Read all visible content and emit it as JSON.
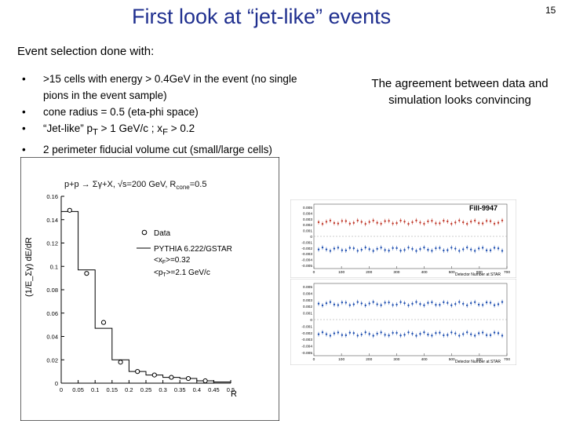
{
  "slide": {
    "title": "First look at “jet-like” events",
    "page_number": "15",
    "subtitle": "Event selection done with:",
    "bullets": [
      {
        "line1": ">15 cells with energy > 0.4GeV in the event (no single",
        "line2": "pions in the event sample)"
      },
      {
        "line1": "cone radius = 0.5 (eta-phi space)"
      },
      {
        "line1": "“Jet-like” p",
        "sub1": "T",
        "mid": " > 1 GeV/c ; x",
        "sub2": "F",
        "end": " > 0.2"
      },
      {
        "line1": "2 perimeter fiducial volume cut (small/large cells)"
      }
    ],
    "note": "The agreement between data and simulation looks convincing"
  },
  "chart_data": [
    {
      "type": "scatter",
      "title": "p+p → Σγ+X, √s=200 GeV, R",
      "title_sub": "cone",
      "title_end": "=0.5",
      "xlabel": "R",
      "ylabel": "(1/E_Σγ) dE/dR",
      "xlim": [
        0,
        0.5
      ],
      "ylim": [
        0,
        0.16
      ],
      "x_ticks": [
        "0",
        "0.05",
        "0.1",
        "0.15",
        "0.2",
        "0.25",
        "0.3",
        "0.35",
        "0.4",
        "0.45",
        "0.5"
      ],
      "y_ticks": [
        "0",
        "0.02",
        "0.04",
        "0.06",
        "0.08",
        "0.1",
        "0.12",
        "0.14",
        "0.16"
      ],
      "legend": {
        "data_label": "Data",
        "sim_label": "PYTHIA 6.222/GSTAR",
        "xf_label": "<x",
        "xf_sub": "F",
        "xf_val": ">=0.32",
        "pt_label": "<p",
        "pt_sub": "T",
        "pt_val": ">=2.1 GeV/c"
      },
      "series": [
        {
          "name": "Data",
          "x": [
            0.025,
            0.075,
            0.125,
            0.175,
            0.225,
            0.275,
            0.325,
            0.375,
            0.425
          ],
          "y": [
            0.148,
            0.094,
            0.052,
            0.018,
            0.01,
            0.007,
            0.005,
            0.004,
            0.002
          ]
        },
        {
          "name": "PYTHIA 6.222/GSTAR",
          "x": [
            0.0,
            0.05,
            0.1,
            0.15,
            0.2,
            0.25,
            0.3,
            0.35,
            0.4,
            0.45
          ],
          "y": [
            0.147,
            0.097,
            0.047,
            0.02,
            0.01,
            0.007,
            0.005,
            0.004,
            0.002,
            0.001
          ]
        }
      ]
    },
    {
      "type": "scatter",
      "title": "Fill-9947",
      "xlabel": "Detector Number at STAR",
      "x_ticks": [
        "0",
        "100",
        "200",
        "300",
        "400",
        "500",
        "600",
        "700"
      ],
      "y_ticks": [
        "0.005",
        "0.004",
        "0.003",
        "0.002",
        "0.001",
        "0",
        "-0.001",
        "-0.002",
        "-0.003",
        "-0.004",
        "-0.005"
      ],
      "series": [
        {
          "name": "upper",
          "color": "#c0392b"
        },
        {
          "name": "lower",
          "color": "#1f4fb0"
        }
      ]
    },
    {
      "type": "scatter",
      "xlabel": "Detector Number at STAR",
      "x_ticks": [
        "0",
        "100",
        "200",
        "300",
        "400",
        "500",
        "600",
        "700"
      ],
      "y_ticks": [
        "0.005",
        "0.004",
        "0.003",
        "0.002",
        "0.001",
        "0",
        "-0.001",
        "-0.002",
        "-0.003",
        "-0.004",
        "-0.005"
      ],
      "series": [
        {
          "name": "upper",
          "color": "#1f4fb0"
        },
        {
          "name": "lower",
          "color": "#1f4fb0"
        }
      ]
    }
  ]
}
